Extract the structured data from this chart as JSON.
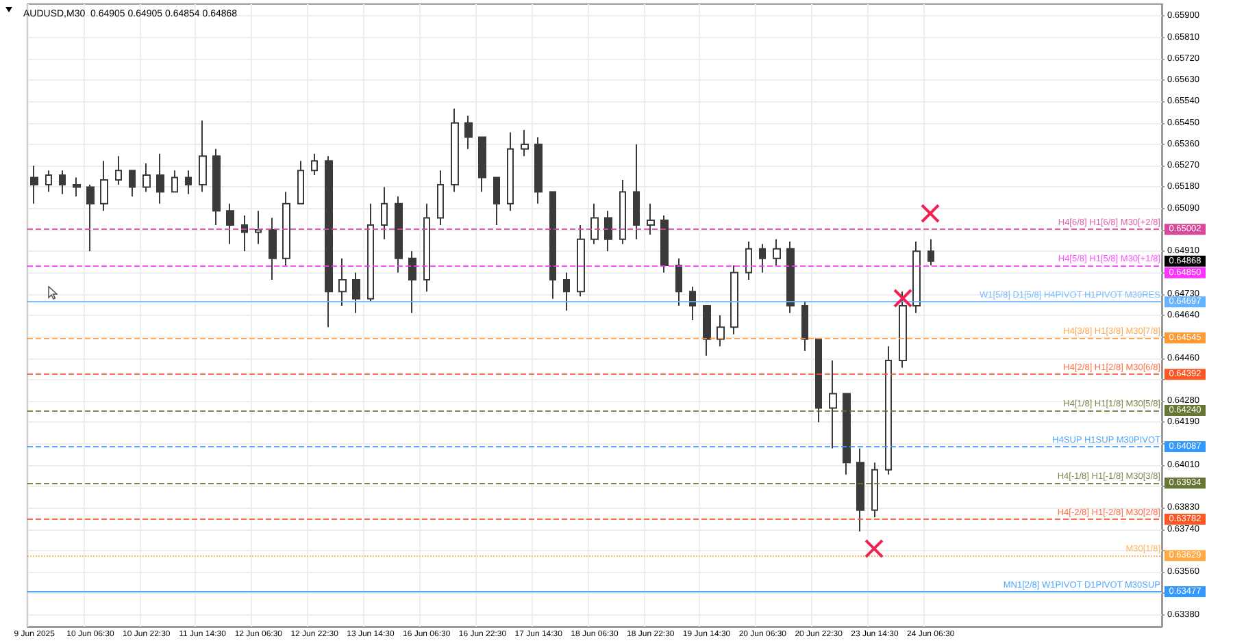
{
  "chart_data": {
    "type": "candlestick",
    "title": "AUDUSD,M30  0.64905 0.64905 0.64854 0.64868",
    "categories": [
      "9 Jun 2025",
      null,
      null,
      null,
      "10 Jun 06:30",
      null,
      null,
      null,
      "10 Jun 22:30",
      null,
      null,
      null,
      "11 Jun 14:30",
      null,
      null,
      null,
      "12 Jun 06:30",
      null,
      null,
      null,
      "12 Jun 22:30",
      null,
      null,
      null,
      "13 Jun 14:30",
      null,
      null,
      null,
      "16 Jun 06:30",
      null,
      null,
      null,
      "16 Jun 22:30",
      null,
      null,
      null,
      "17 Jun 14:30",
      null,
      null,
      null,
      "18 Jun 06:30",
      null,
      null,
      null,
      "18 Jun 22:30",
      null,
      null,
      null,
      "19 Jun 14:30",
      null,
      null,
      null,
      "20 Jun 06:30",
      null,
      null,
      null,
      "20 Jun 22:30",
      null,
      null,
      null,
      "23 Jun 14:30",
      null,
      null,
      null,
      "24 Jun 06:30",
      null,
      null,
      null,
      null,
      null,
      null,
      null,
      null,
      null,
      null,
      null,
      null,
      null,
      null,
      null,
      null
    ],
    "ohlc": [
      [
        0.6522,
        0.6527,
        0.6511,
        0.6519
      ],
      [
        0.6519,
        0.6525,
        0.6516,
        0.6523
      ],
      [
        0.6523,
        0.6525,
        0.6515,
        0.6519
      ],
      [
        0.6519,
        0.6522,
        0.6514,
        0.6518
      ],
      [
        0.6518,
        0.6519,
        0.6491,
        0.6511
      ],
      [
        0.6511,
        0.6529,
        0.6508,
        0.6521
      ],
      [
        0.6521,
        0.6531,
        0.6519,
        0.6525
      ],
      [
        0.6525,
        0.6525,
        0.6514,
        0.6518
      ],
      [
        0.6518,
        0.6528,
        0.6516,
        0.6523
      ],
      [
        0.6523,
        0.6532,
        0.6511,
        0.6516
      ],
      [
        0.6516,
        0.6525,
        0.6516,
        0.6522
      ],
      [
        0.6522,
        0.6525,
        0.6515,
        0.6519
      ],
      [
        0.6519,
        0.6546,
        0.6516,
        0.6531
      ],
      [
        0.6531,
        0.6534,
        0.6502,
        0.6508
      ],
      [
        0.6508,
        0.6511,
        0.6494,
        0.6502
      ],
      [
        0.6502,
        0.6506,
        0.6491,
        0.6499
      ],
      [
        0.6499,
        0.6508,
        0.6494,
        0.65
      ],
      [
        0.65,
        0.6505,
        0.6479,
        0.6488
      ],
      [
        0.6488,
        0.6516,
        0.6485,
        0.6511
      ],
      [
        0.6511,
        0.6529,
        0.6511,
        0.6525
      ],
      [
        0.6525,
        0.6532,
        0.6523,
        0.6529
      ],
      [
        0.6529,
        0.6531,
        0.6459,
        0.6474
      ],
      [
        0.6474,
        0.6488,
        0.6468,
        0.6479
      ],
      [
        0.6479,
        0.6482,
        0.6465,
        0.6471
      ],
      [
        0.6471,
        0.6511,
        0.647,
        0.6502
      ],
      [
        0.6502,
        0.6518,
        0.6496,
        0.6511
      ],
      [
        0.6511,
        0.6514,
        0.6482,
        0.6488
      ],
      [
        0.6488,
        0.6491,
        0.6465,
        0.6479
      ],
      [
        0.6479,
        0.6511,
        0.6474,
        0.6505
      ],
      [
        0.6505,
        0.6525,
        0.6502,
        0.6519
      ],
      [
        0.6519,
        0.6551,
        0.6516,
        0.6545
      ],
      [
        0.6545,
        0.6548,
        0.6534,
        0.6539
      ],
      [
        0.6539,
        0.6539,
        0.6516,
        0.6522
      ],
      [
        0.6522,
        0.6522,
        0.6502,
        0.6511
      ],
      [
        0.6511,
        0.6541,
        0.6508,
        0.6534
      ],
      [
        0.6534,
        0.6542,
        0.6531,
        0.6536
      ],
      [
        0.6536,
        0.6539,
        0.6511,
        0.6516
      ],
      [
        0.6516,
        0.6516,
        0.6471,
        0.6479
      ],
      [
        0.6479,
        0.6482,
        0.6466,
        0.6474
      ],
      [
        0.6474,
        0.6502,
        0.6472,
        0.6496
      ],
      [
        0.6496,
        0.6511,
        0.6494,
        0.6505
      ],
      [
        0.6505,
        0.6508,
        0.6491,
        0.6496
      ],
      [
        0.6496,
        0.6521,
        0.6494,
        0.6516
      ],
      [
        0.6516,
        0.6536,
        0.6496,
        0.6502
      ],
      [
        0.6502,
        0.6511,
        0.6498,
        0.6504
      ],
      [
        0.6504,
        0.6506,
        0.6482,
        0.6485
      ],
      [
        0.6485,
        0.6488,
        0.6468,
        0.6474
      ],
      [
        0.6474,
        0.6476,
        0.6462,
        0.6468
      ],
      [
        0.6468,
        0.6468,
        0.6447,
        0.6454
      ],
      [
        0.6454,
        0.6464,
        0.6451,
        0.6459
      ],
      [
        0.6459,
        0.6485,
        0.6456,
        0.6482
      ],
      [
        0.6482,
        0.6495,
        0.6479,
        0.6492
      ],
      [
        0.6492,
        0.6494,
        0.6482,
        0.6488
      ],
      [
        0.6488,
        0.6496,
        0.6485,
        0.6492
      ],
      [
        0.6492,
        0.6495,
        0.6465,
        0.6468
      ],
      [
        0.6468,
        0.647,
        0.6449,
        0.6454
      ],
      [
        0.6454,
        0.6454,
        0.6419,
        0.6425
      ],
      [
        0.6425,
        0.6445,
        0.6408,
        0.6431
      ],
      [
        0.6431,
        0.6431,
        0.6397,
        0.6402
      ],
      [
        0.6402,
        0.6408,
        0.6373,
        0.6382
      ],
      [
        0.6382,
        0.6402,
        0.6379,
        0.6399
      ],
      [
        0.6399,
        0.6451,
        0.6397,
        0.6445
      ],
      [
        0.6445,
        0.6474,
        0.6442,
        0.6468
      ],
      [
        0.6468,
        0.6495,
        0.6465,
        0.6491
      ],
      [
        0.6491,
        0.6496,
        0.6485,
        0.64868
      ],
      null,
      null,
      null,
      null,
      null,
      null,
      null,
      null,
      null,
      null,
      null,
      null,
      null,
      null,
      null,
      null
    ],
    "color": "#3a3a3a",
    "ylim": [
      0.6333,
      0.6595
    ],
    "yticks": [
      {
        "value": 0.6338,
        "label": "0.63380"
      },
      {
        "value": 0.6347,
        "label": null
      },
      {
        "value": 0.6356,
        "label": "0.63560"
      },
      {
        "value": 0.6365,
        "label": null
      },
      {
        "value": 0.6374,
        "label": "0.63740"
      },
      {
        "value": 0.6383,
        "label": "0.63830"
      },
      {
        "value": 0.6392,
        "label": null
      },
      {
        "value": 0.6401,
        "label": "0.64010"
      },
      {
        "value": 0.641,
        "label": null
      },
      {
        "value": 0.6419,
        "label": "0.64190"
      },
      {
        "value": 0.6428,
        "label": "0.64280"
      },
      {
        "value": 0.6437,
        "label": null
      },
      {
        "value": 0.6446,
        "label": "0.64460"
      },
      {
        "value": 0.6455,
        "label": null
      },
      {
        "value": 0.6464,
        "label": "0.64640"
      },
      {
        "value": 0.6473,
        "label": "0.64730"
      },
      {
        "value": 0.6482,
        "label": null
      },
      {
        "value": 0.6491,
        "label": "0.64910"
      },
      {
        "value": 0.65,
        "label": null
      },
      {
        "value": 0.6509,
        "label": "0.65090"
      },
      {
        "value": 0.6518,
        "label": "0.65180"
      },
      {
        "value": 0.6527,
        "label": "0.65270"
      },
      {
        "value": 0.6536,
        "label": "0.65360"
      },
      {
        "value": 0.6545,
        "label": "0.65450"
      },
      {
        "value": 0.6554,
        "label": "0.65540"
      },
      {
        "value": 0.6563,
        "label": "0.65630"
      },
      {
        "value": 0.6572,
        "label": "0.65720"
      },
      {
        "value": 0.6581,
        "label": "0.65810"
      },
      {
        "value": 0.659,
        "label": "0.65900"
      }
    ],
    "grid": true,
    "ref_lines": [
      {
        "axis": "y",
        "value": 0.65002,
        "label": "H4[6/8] H1[6/8] M30[+2/8]",
        "color": "#d9479a",
        "line_style": "dashed"
      },
      {
        "axis": "y",
        "value": 0.6485,
        "label": "H4[5/8] H1[5/8] M30[+1/8]",
        "color": "#ff33ff",
        "line_style": "dashed"
      },
      {
        "axis": "y",
        "value": 0.64697,
        "label": "W1[5/8] D1[5/8] H4PIVOT H1PIVOT M30RES",
        "color": "#66b3ff",
        "line_style": "solid"
      },
      {
        "axis": "y",
        "value": 0.64545,
        "label": "H4[3/8] H1[3/8] M30[7/8]",
        "color": "#ff9933",
        "line_style": "dashed"
      },
      {
        "axis": "y",
        "value": 0.64392,
        "label": "H4[2/8] H1[2/8] M30[6/8]",
        "color": "#ff5522",
        "line_style": "dashed"
      },
      {
        "axis": "y",
        "value": 0.6424,
        "label": "H4[1/8] H1[1/8] M30[5/8]",
        "color": "#667733",
        "line_style": "dashed"
      },
      {
        "axis": "y",
        "value": 0.64087,
        "label": "H4SUP H1SUP M30PIVOT",
        "color": "#3399ff",
        "line_style": "dashed"
      },
      {
        "axis": "y",
        "value": 0.63934,
        "label": "H4[-1/8] H1[-1/8] M30[3/8]",
        "color": "#667733",
        "line_style": "dashed"
      },
      {
        "axis": "y",
        "value": 0.63782,
        "label": "H4[-2/8] H1[-2/8] M30[2/8]",
        "color": "#ff5522",
        "line_style": "dashed"
      },
      {
        "axis": "y",
        "value": 0.63629,
        "label": "M30[1/8]",
        "color": "#ffaa44",
        "line_style": "dotted"
      },
      {
        "axis": "y",
        "value": 0.63477,
        "label": "MN1[2/8] W1PIVOT D1PIVOT M30SUP",
        "color": "#3399ff",
        "line_style": "solid"
      }
    ],
    "annotations": [
      "0.65002",
      "0.64850",
      "0.64697",
      "0.64545",
      "0.64392",
      "0.64240",
      "0.64087",
      "0.63934",
      "0.63782",
      "0.63629",
      "0.63477",
      "0.64868"
    ]
  }
}
